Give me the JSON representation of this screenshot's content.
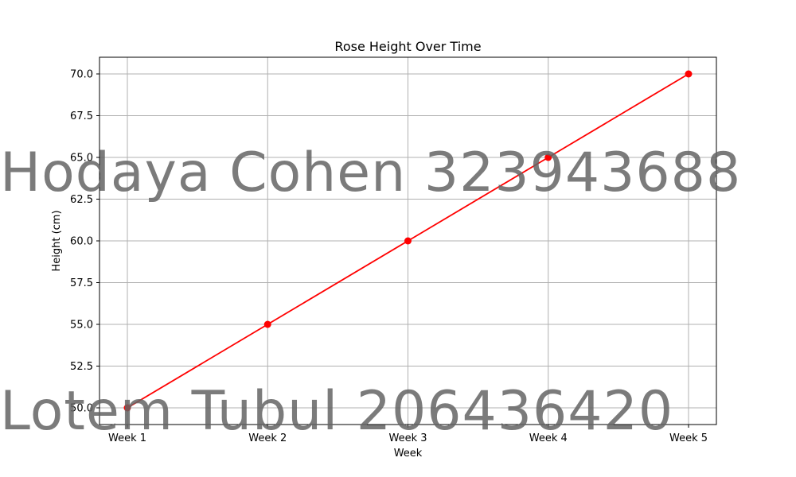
{
  "chart_data": {
    "type": "line",
    "title": "Rose Height Over Time",
    "xlabel": "Week",
    "ylabel": "Height (cm)",
    "categories": [
      "Week 1",
      "Week 2",
      "Week 3",
      "Week 4",
      "Week 5"
    ],
    "series": [
      {
        "values": [
          50,
          55,
          60,
          65,
          70
        ],
        "color": "#ff0000",
        "marker": "circle"
      }
    ],
    "ylim": [
      49.0,
      71.0
    ],
    "yticks": [
      "50.0",
      "52.5",
      "55.0",
      "57.5",
      "60.0",
      "62.5",
      "65.0",
      "67.5",
      "70.0"
    ],
    "grid": true
  },
  "watermarks": [
    "Hodaya Cohen 323943688",
    "Lotem Tubul 206436420"
  ]
}
